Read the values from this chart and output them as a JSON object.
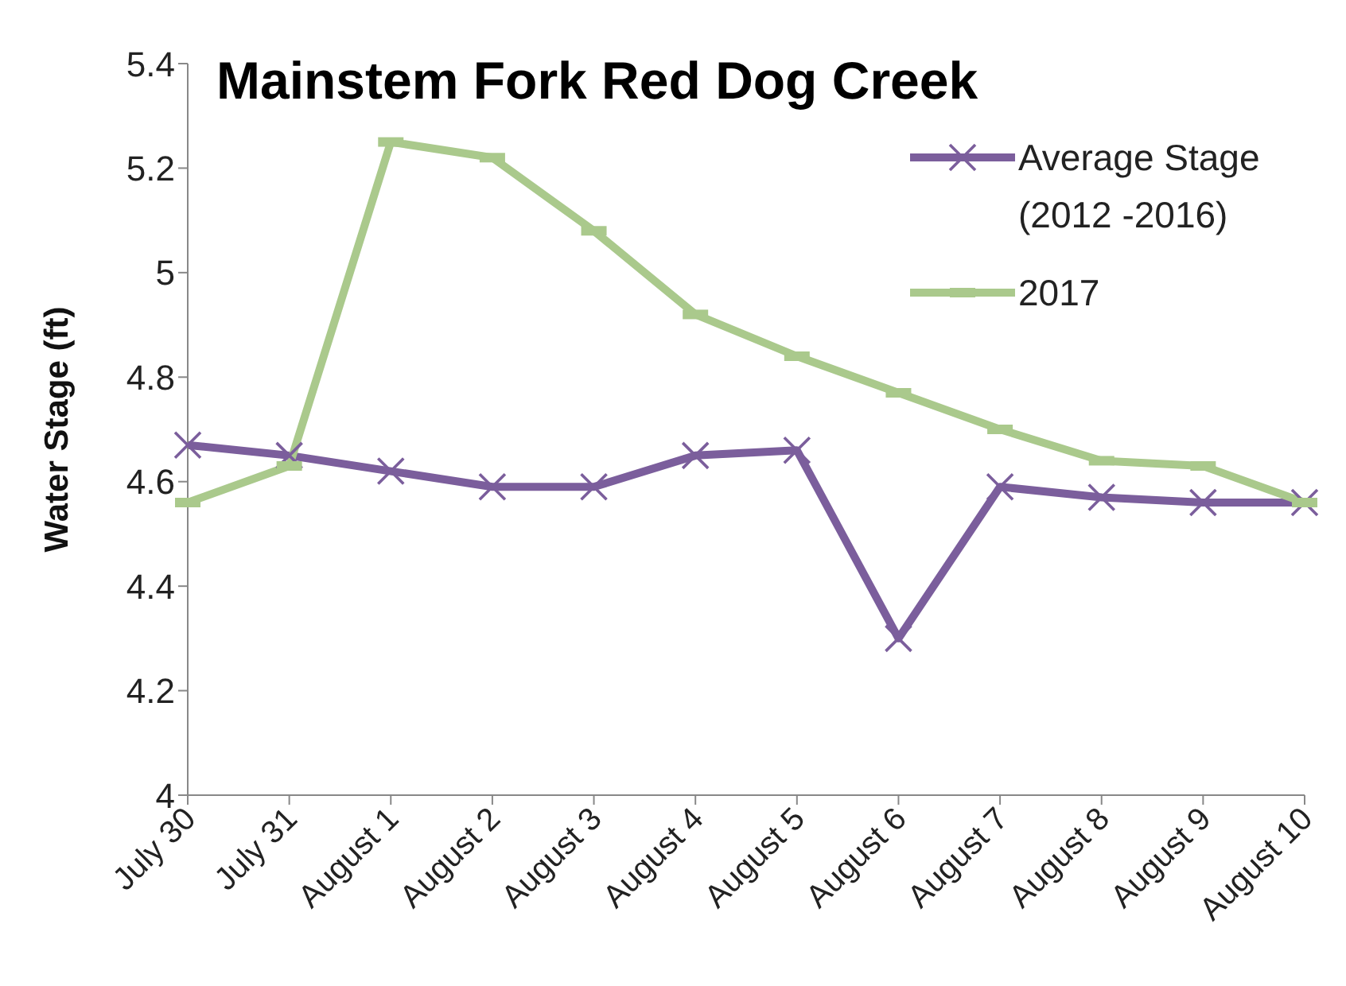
{
  "chart_data": {
    "type": "line",
    "title": "Mainstem Fork Red Dog Creek",
    "ylabel": "Water Stage (ft)",
    "categories": [
      "July 30",
      "July 31",
      "August 1",
      "August 2",
      "August 3",
      "August 4",
      "August 5",
      "August 6",
      "August 7",
      "August 8",
      "August 9",
      "August 10"
    ],
    "series": [
      {
        "name": "Average Stage (2012 -2016)",
        "color": "#7b5e9c",
        "marker": "cross",
        "values": [
          4.67,
          4.65,
          4.62,
          4.59,
          4.59,
          4.65,
          4.66,
          4.3,
          4.59,
          4.57,
          4.56,
          4.56
        ]
      },
      {
        "name": "2017",
        "color": "#aac98c",
        "marker": "square",
        "values": [
          4.56,
          4.63,
          5.25,
          5.22,
          5.08,
          4.92,
          4.84,
          4.77,
          4.7,
          4.64,
          4.63,
          4.56
        ]
      }
    ],
    "ylim": [
      4,
      5.4
    ],
    "yticks": [
      4,
      4.2,
      4.4,
      4.6,
      4.8,
      5,
      5.2,
      5.4
    ],
    "grid": false,
    "legend": "top right",
    "line_style": "solid"
  }
}
